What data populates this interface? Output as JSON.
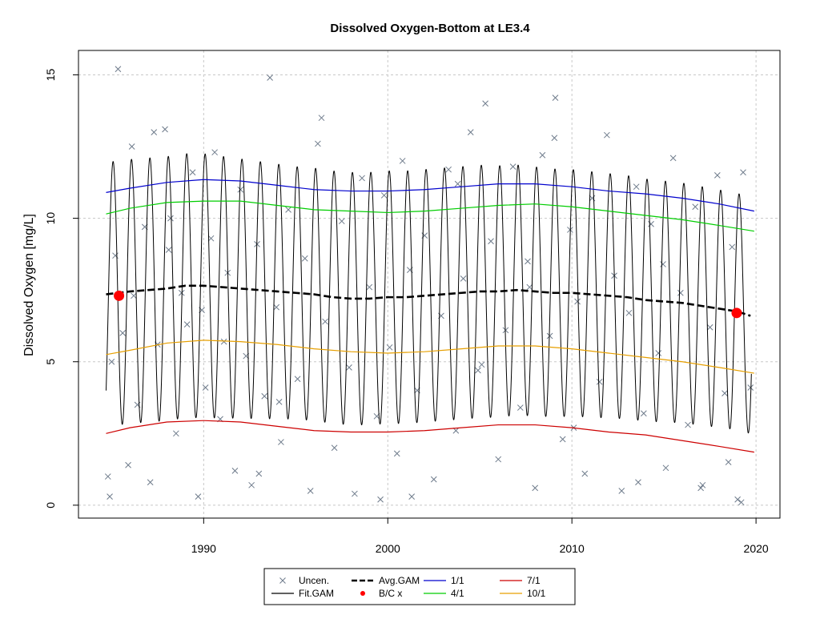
{
  "chart_data": {
    "type": "line",
    "title": "Dissolved Oxygen-Bottom at LE3.4",
    "xlabel": "",
    "ylabel": "Dissolved Oxygen [mg/L]",
    "xlim": [
      1983.2,
      2021.3
    ],
    "ylim": [
      -0.45,
      15.85
    ],
    "xticks": [
      1990,
      2000,
      2010,
      2020
    ],
    "yticks": [
      0,
      5,
      10,
      15
    ],
    "grid": true,
    "legend_position": "bottom",
    "legend": [
      {
        "label": "Uncen.",
        "kind": "cross",
        "color": "#6e7b8b"
      },
      {
        "label": "Fit.GAM",
        "kind": "line",
        "color": "#000000"
      },
      {
        "label": "Avg.GAM",
        "kind": "dashed",
        "color": "#000000"
      },
      {
        "label": "B/C x",
        "kind": "dot",
        "color": "#ff0000"
      },
      {
        "label": "1/1",
        "kind": "line",
        "color": "#0000cd"
      },
      {
        "label": "4/1",
        "kind": "line",
        "color": "#00cd00"
      },
      {
        "label": "7/1",
        "kind": "line",
        "color": "#cd0000"
      },
      {
        "label": "10/1",
        "kind": "line",
        "color": "#e69f00"
      }
    ],
    "fit_gam": {
      "x_range": [
        1984.7,
        2019.75
      ],
      "peak_phase": 0.08,
      "min_phase": 0.58,
      "amplitude_by_year": [
        [
          1985,
          4.6
        ],
        [
          1990,
          4.6
        ],
        [
          1995,
          4.4
        ],
        [
          2000,
          4.4
        ],
        [
          2005,
          4.4
        ],
        [
          2010,
          4.3
        ],
        [
          2015,
          4.2
        ],
        [
          2020,
          4.1
        ]
      ],
      "color": "#000000"
    },
    "series": [
      {
        "name": "Avg.GAM",
        "color": "#000000",
        "style": "dashed",
        "x": [
          1984.7,
          1986,
          1987,
          1988,
          1989,
          1990,
          1991,
          1992,
          1993,
          1994,
          1995,
          1996,
          1997,
          1998,
          1999,
          2000,
          2001,
          2002,
          2003,
          2004,
          2005,
          2006,
          2007,
          2008,
          2009,
          2010,
          2011,
          2012,
          2013,
          2014,
          2015,
          2016,
          2017,
          2018,
          2019,
          2019.7
        ],
        "y": [
          7.35,
          7.45,
          7.5,
          7.55,
          7.65,
          7.65,
          7.6,
          7.55,
          7.5,
          7.45,
          7.4,
          7.35,
          7.25,
          7.2,
          7.2,
          7.25,
          7.25,
          7.3,
          7.35,
          7.4,
          7.45,
          7.45,
          7.5,
          7.45,
          7.4,
          7.4,
          7.35,
          7.3,
          7.25,
          7.15,
          7.1,
          7.05,
          6.95,
          6.85,
          6.75,
          6.6
        ]
      },
      {
        "name": "1/1",
        "color": "#0000cd",
        "style": "solid",
        "x": [
          1984.7,
          1986,
          1988,
          1990,
          1992,
          1994,
          1996,
          1998,
          2000,
          2002,
          2004,
          2006,
          2008,
          2010,
          2012,
          2014,
          2016,
          2018,
          2019.9
        ],
        "y": [
          10.9,
          11.05,
          11.25,
          11.35,
          11.3,
          11.15,
          11.0,
          10.95,
          10.95,
          11.0,
          11.1,
          11.2,
          11.2,
          11.1,
          10.95,
          10.85,
          10.7,
          10.5,
          10.25
        ]
      },
      {
        "name": "4/1",
        "color": "#00cd00",
        "style": "solid",
        "x": [
          1984.7,
          1986,
          1988,
          1990,
          1992,
          1994,
          1996,
          1998,
          2000,
          2002,
          2004,
          2006,
          2008,
          2010,
          2012,
          2014,
          2016,
          2018,
          2019.9
        ],
        "y": [
          10.15,
          10.35,
          10.55,
          10.6,
          10.6,
          10.45,
          10.3,
          10.25,
          10.2,
          10.25,
          10.35,
          10.45,
          10.5,
          10.4,
          10.25,
          10.1,
          9.95,
          9.75,
          9.55
        ]
      },
      {
        "name": "10/1",
        "color": "#e69f00",
        "style": "solid",
        "x": [
          1984.7,
          1986,
          1988,
          1990,
          1992,
          1994,
          1996,
          1998,
          2000,
          2002,
          2004,
          2006,
          2008,
          2010,
          2012,
          2014,
          2016,
          2018,
          2019.9
        ],
        "y": [
          5.25,
          5.4,
          5.65,
          5.75,
          5.7,
          5.6,
          5.45,
          5.35,
          5.3,
          5.35,
          5.45,
          5.55,
          5.55,
          5.45,
          5.3,
          5.15,
          5.0,
          4.8,
          4.6
        ]
      },
      {
        "name": "7/1",
        "color": "#cd0000",
        "style": "solid",
        "x": [
          1984.7,
          1986,
          1988,
          1990,
          1992,
          1994,
          1996,
          1998,
          2000,
          2002,
          2004,
          2006,
          2008,
          2010,
          2012,
          2014,
          2016,
          2018,
          2019.9
        ],
        "y": [
          2.5,
          2.7,
          2.9,
          2.95,
          2.9,
          2.75,
          2.6,
          2.55,
          2.55,
          2.6,
          2.7,
          2.8,
          2.8,
          2.7,
          2.55,
          2.45,
          2.25,
          2.05,
          1.85
        ]
      }
    ],
    "bc_points": {
      "label": "B/C x",
      "color": "#ff0000",
      "x": [
        1985.4,
        2018.95
      ],
      "y": [
        7.3,
        6.7
      ]
    },
    "uncen_points": {
      "label": "Uncen.",
      "color": "#6e7b8b",
      "x": [
        1984.8,
        1985.0,
        1985.2,
        1985.35,
        1985.6,
        1985.9,
        1986.1,
        1986.4,
        1986.8,
        1987.1,
        1987.5,
        1987.9,
        1988.2,
        1988.5,
        1988.8,
        1989.1,
        1989.4,
        1989.7,
        1990.1,
        1990.4,
        1990.6,
        1990.9,
        1991.3,
        1991.7,
        1992.0,
        1992.3,
        1992.6,
        1992.9,
        1993.3,
        1993.6,
        1993.95,
        1994.2,
        1994.6,
        1995.1,
        1995.5,
        1995.8,
        1996.2,
        1996.6,
        1997.1,
        1997.5,
        1997.9,
        1998.2,
        1998.6,
        1999.0,
        1999.4,
        1999.8,
        2000.1,
        2000.5,
        2000.8,
        2001.2,
        2001.6,
        2002.0,
        2002.5,
        2002.9,
        2003.3,
        2003.7,
        2004.1,
        2004.5,
        2004.9,
        2005.3,
        2005.6,
        2006.0,
        2006.4,
        2006.8,
        2007.2,
        2007.6,
        2008.0,
        2008.4,
        2008.8,
        2009.1,
        2009.5,
        2009.9,
        2010.3,
        2010.7,
        2011.1,
        2011.5,
        2011.9,
        2012.3,
        2012.7,
        2013.1,
        2013.5,
        2013.9,
        2014.3,
        2014.7,
        2015.1,
        2015.5,
        2015.9,
        2016.3,
        2016.7,
        2017.1,
        2017.5,
        2017.9,
        2018.3,
        2018.7,
        2019.0,
        2019.3,
        2019.7,
        1986.2,
        1988.1,
        1989.9,
        1991.1,
        1994.1,
        1996.4,
        2001.3,
        2003.8,
        2005.1,
        2009.05,
        2010.1,
        2014.95,
        2018.5,
        1984.9,
        1987.3,
        1993.0,
        1999.6,
        2007.7,
        2013.6,
        2017.0,
        2019.2
      ],
      "y": [
        1.0,
        5.0,
        8.7,
        15.2,
        6.0,
        1.4,
        12.5,
        3.5,
        9.7,
        0.8,
        5.6,
        13.1,
        10.0,
        2.5,
        7.4,
        6.3,
        11.6,
        0.3,
        4.1,
        9.3,
        12.3,
        3.0,
        8.1,
        1.2,
        11.0,
        5.2,
        0.7,
        9.1,
        3.8,
        14.9,
        6.9,
        2.2,
        10.3,
        4.4,
        8.6,
        0.5,
        12.6,
        6.4,
        2.0,
        9.9,
        4.8,
        0.4,
        11.4,
        7.6,
        3.1,
        10.8,
        5.5,
        1.8,
        12.0,
        8.2,
        4.0,
        9.4,
        0.9,
        6.6,
        11.7,
        2.6,
        7.9,
        13.0,
        4.7,
        14.0,
        9.2,
        1.6,
        6.1,
        11.8,
        3.4,
        8.5,
        0.6,
        12.2,
        5.9,
        14.2,
        2.3,
        9.6,
        7.1,
        1.1,
        10.7,
        4.3,
        12.9,
        8.0,
        0.5,
        6.7,
        11.1,
        3.2,
        9.8,
        5.3,
        1.3,
        12.1,
        7.4,
        2.8,
        10.4,
        0.7,
        6.2,
        11.5,
        3.9,
        9.0,
        0.2,
        11.6,
        4.1,
        7.3,
        8.9,
        6.8,
        5.7,
        3.6,
        13.5,
        0.3,
        11.2,
        4.9,
        12.8,
        2.7,
        8.4,
        1.5,
        0.3,
        13.0,
        1.1,
        0.2,
        7.6,
        0.8,
        0.6,
        0.1
      ]
    }
  }
}
